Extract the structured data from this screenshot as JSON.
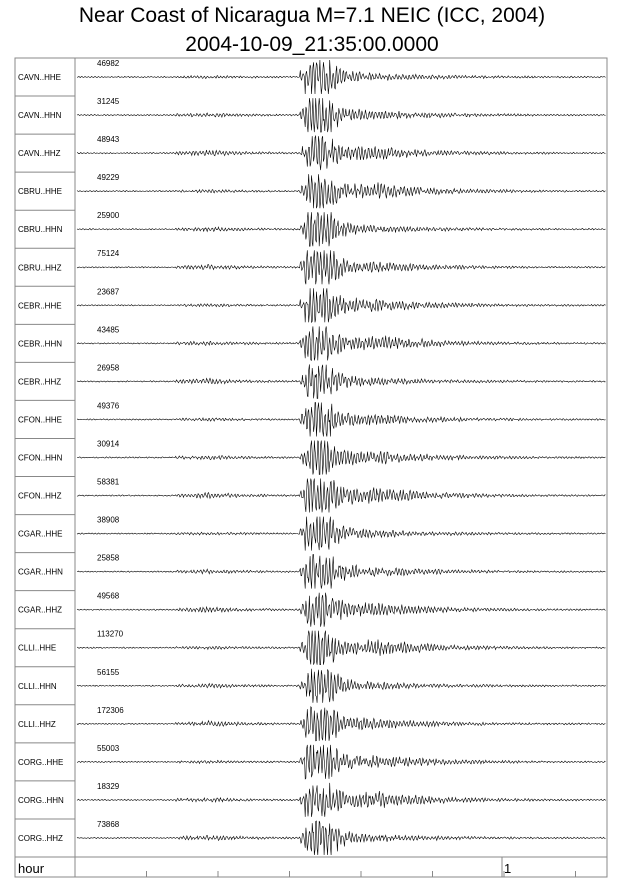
{
  "title": "Near Coast of Nicaragua M=7.1 NEIC (ICC, 2004)",
  "subtitle": "2004-10-09_21:35:00.0000",
  "traces": [
    {
      "label": "CAVN..HHE",
      "amplitude": 46982
    },
    {
      "label": "CAVN..HHN",
      "amplitude": 31245
    },
    {
      "label": "CAVN..HHZ",
      "amplitude": 48943
    },
    {
      "label": "CBRU..HHE",
      "amplitude": 49229
    },
    {
      "label": "CBRU..HHN",
      "amplitude": 25900
    },
    {
      "label": "CBRU..HHZ",
      "amplitude": 75124
    },
    {
      "label": "CEBR..HHE",
      "amplitude": 23687
    },
    {
      "label": "CEBR..HHN",
      "amplitude": 43485
    },
    {
      "label": "CEBR..HHZ",
      "amplitude": 26958
    },
    {
      "label": "CFON..HHE",
      "amplitude": 49376
    },
    {
      "label": "CFON..HHN",
      "amplitude": 30914
    },
    {
      "label": "CFON..HHZ",
      "amplitude": 58381
    },
    {
      "label": "CGAR..HHE",
      "amplitude": 38908
    },
    {
      "label": "CGAR..HHN",
      "amplitude": 25858
    },
    {
      "label": "CGAR..HHZ",
      "amplitude": 49568
    },
    {
      "label": "CLLI..HHE",
      "amplitude": 113270
    },
    {
      "label": "CLLI..HHN",
      "amplitude": 56155
    },
    {
      "label": "CLLI..HHZ",
      "amplitude": 172306
    },
    {
      "label": "CORG..HHE",
      "amplitude": 55003
    },
    {
      "label": "CORG..HHN",
      "amplitude": 18329
    },
    {
      "label": "CORG..HHZ",
      "amplitude": 73868
    }
  ],
  "axis": {
    "label": "hour",
    "tick": "1"
  }
}
